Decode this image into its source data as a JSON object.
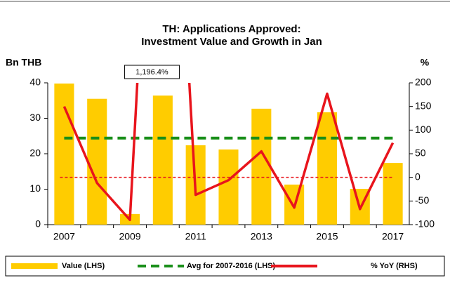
{
  "chart_data": {
    "type": "bar_line",
    "title": [
      "TH: Applications Approved:",
      "Investment Value and Growth in Jan"
    ],
    "y_label": "Bn THB",
    "y2_label": "%",
    "categories": [
      "2007",
      null,
      "2009",
      null,
      "2011",
      null,
      "2013",
      null,
      "2015",
      null,
      "2017"
    ],
    "series": [
      {
        "name": "Value  (LHS)",
        "type": "bar",
        "color": "#ffcc00",
        "values": [
          39.8,
          35.5,
          3.0,
          36.4,
          22.4,
          21.2,
          32.7,
          11.3,
          31.7,
          10.1,
          17.4
        ]
      },
      {
        "name": "Avg for 2007-2016 (LHS)",
        "type": "hline",
        "color": "#1a8f1a",
        "value": 24.4
      },
      {
        "name": "% YoY (RHS)",
        "type": "line",
        "color": "#e8141c",
        "axis": "y2",
        "values": [
          150,
          -12,
          -90,
          1196.4,
          -37,
          -6,
          55,
          -64,
          177,
          -67,
          73
        ],
        "value_labels": [
          null,
          null,
          null,
          "1,196.4%",
          null,
          null,
          null,
          null,
          null,
          null,
          null
        ]
      }
    ],
    "y2_reference": {
      "value": 0,
      "color": "#e8141c"
    },
    "ylim": [
      0,
      40
    ],
    "yticks": [
      0,
      10,
      20,
      30,
      40
    ],
    "y2lim": [
      -100,
      200
    ],
    "y2ticks": [
      -100,
      -50,
      0,
      50,
      100,
      150,
      200
    ]
  }
}
